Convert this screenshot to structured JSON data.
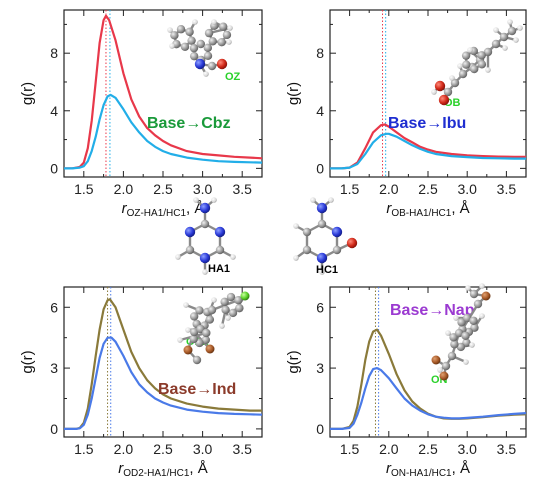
{
  "colors": {
    "cbz_title": "#1a9a3a",
    "ibu_title": "#1f2ed1",
    "ind_title": "#8b3a2a",
    "nap_title": "#9b3ad1",
    "label_green": "#2ad12a",
    "red_curve": "#e8384a",
    "cyan_curve": "#22aee8",
    "olive_curve": "#8a7a3a",
    "blue_curve": "#4a7ae8"
  },
  "molecules": {
    "left_label": "HA1",
    "right_label": "HC1"
  },
  "chart_data": [
    {
      "type": "line",
      "title": "Base→Cbz",
      "atom_label": "OZ",
      "ylabel": "g(r)",
      "xlabel_main": "r",
      "xlabel_sub": "OZ-HA1/HC1",
      "xlabel_unit": ", Å",
      "xlim": [
        1.25,
        3.75
      ],
      "ylim": [
        -0.6,
        11
      ],
      "xticks": [
        "1.5",
        "2.0",
        "2.5",
        "3.0",
        "3.5"
      ],
      "xtick_values": [
        1.5,
        2.0,
        2.5,
        3.0,
        3.5
      ],
      "yticks": [
        "0",
        "4",
        "8"
      ],
      "ytick_values": [
        0,
        4,
        8
      ],
      "vlines": [
        1.78,
        1.83
      ],
      "series": [
        {
          "color": "red_curve",
          "x": [
            1.25,
            1.35,
            1.45,
            1.5,
            1.55,
            1.6,
            1.65,
            1.7,
            1.75,
            1.78,
            1.82,
            1.9,
            2.0,
            2.1,
            2.2,
            2.3,
            2.4,
            2.5,
            2.6,
            2.8,
            3.0,
            3.2,
            3.4,
            3.6,
            3.75
          ],
          "y": [
            0,
            0,
            0.1,
            0.4,
            1.4,
            3.3,
            6.0,
            8.7,
            10.3,
            10.6,
            10.3,
            8.9,
            6.6,
            4.8,
            3.6,
            2.8,
            2.3,
            1.9,
            1.6,
            1.2,
            1.0,
            0.9,
            0.8,
            0.75,
            0.7
          ]
        },
        {
          "color": "cyan_curve",
          "x": [
            1.25,
            1.35,
            1.45,
            1.5,
            1.55,
            1.6,
            1.65,
            1.7,
            1.75,
            1.8,
            1.84,
            1.9,
            2.0,
            2.1,
            2.2,
            2.3,
            2.4,
            2.5,
            2.6,
            2.8,
            3.0,
            3.2,
            3.4,
            3.6,
            3.75
          ],
          "y": [
            0,
            0,
            0.05,
            0.15,
            0.5,
            1.2,
            2.2,
            3.4,
            4.4,
            5.0,
            5.1,
            4.9,
            4.1,
            3.2,
            2.5,
            1.9,
            1.5,
            1.2,
            1.0,
            0.75,
            0.6,
            0.5,
            0.45,
            0.42,
            0.4
          ]
        }
      ]
    },
    {
      "type": "line",
      "title": "Base→Ibu",
      "atom_label": "OB",
      "ylabel": "g(r)",
      "xlabel_main": "r",
      "xlabel_sub": "OB-HA1/HC1",
      "xlabel_unit": ", Å",
      "xlim": [
        1.25,
        3.75
      ],
      "ylim": [
        -0.6,
        11
      ],
      "xticks": [
        "1.5",
        "2.0",
        "2.5",
        "3.0",
        "3.5"
      ],
      "xtick_values": [
        1.5,
        2.0,
        2.5,
        3.0,
        3.5
      ],
      "yticks": [
        "0",
        "4",
        "8"
      ],
      "ytick_values": [
        0,
        4,
        8
      ],
      "vlines": [
        1.92,
        1.96
      ],
      "series": [
        {
          "color": "red_curve",
          "x": [
            1.25,
            1.4,
            1.5,
            1.6,
            1.7,
            1.8,
            1.9,
            1.95,
            2.0,
            2.1,
            2.2,
            2.3,
            2.4,
            2.5,
            2.6,
            2.8,
            3.0,
            3.2,
            3.4,
            3.6,
            3.75
          ],
          "y": [
            0,
            0,
            0.05,
            0.4,
            1.4,
            2.5,
            3.0,
            3.05,
            2.9,
            2.5,
            2.1,
            1.8,
            1.5,
            1.3,
            1.15,
            1.0,
            0.9,
            0.85,
            0.82,
            0.8,
            0.8
          ]
        },
        {
          "color": "cyan_curve",
          "x": [
            1.25,
            1.4,
            1.5,
            1.6,
            1.7,
            1.8,
            1.9,
            1.97,
            2.0,
            2.1,
            2.2,
            2.3,
            2.4,
            2.5,
            2.6,
            2.8,
            3.0,
            3.2,
            3.4,
            3.6,
            3.75
          ],
          "y": [
            0,
            0,
            0.05,
            0.3,
            1.0,
            1.8,
            2.3,
            2.4,
            2.4,
            2.2,
            1.9,
            1.6,
            1.35,
            1.15,
            1.0,
            0.85,
            0.78,
            0.72,
            0.7,
            0.68,
            0.68
          ]
        }
      ]
    },
    {
      "type": "line",
      "title": "Base→Ind",
      "atom_label": "OD2",
      "ylabel": "g(r)",
      "xlabel_main": "r",
      "xlabel_sub": "OD2-HA1/HC1",
      "xlabel_unit": ", Å",
      "xlim": [
        1.25,
        3.75
      ],
      "ylim": [
        -0.4,
        7
      ],
      "xticks": [
        "1.5",
        "2.0",
        "2.5",
        "3.0",
        "3.5"
      ],
      "xtick_values": [
        1.5,
        2.0,
        2.5,
        3.0,
        3.5
      ],
      "yticks": [
        "0",
        "3",
        "6"
      ],
      "ytick_values": [
        0,
        3,
        6
      ],
      "vlines": [
        1.8,
        1.84
      ],
      "series": [
        {
          "color": "olive_curve",
          "x": [
            1.25,
            1.4,
            1.45,
            1.5,
            1.55,
            1.6,
            1.65,
            1.7,
            1.75,
            1.8,
            1.83,
            1.9,
            2.0,
            2.1,
            2.2,
            2.3,
            2.4,
            2.5,
            2.6,
            2.8,
            3.0,
            3.2,
            3.4,
            3.6,
            3.75
          ],
          "y": [
            0,
            0,
            0.05,
            0.3,
            1.0,
            2.2,
            3.6,
            4.9,
            5.9,
            6.35,
            6.4,
            6.0,
            4.9,
            3.8,
            3.0,
            2.4,
            2.0,
            1.7,
            1.5,
            1.25,
            1.1,
            1.0,
            0.95,
            0.9,
            0.9
          ]
        },
        {
          "color": "blue_curve",
          "x": [
            1.25,
            1.4,
            1.45,
            1.5,
            1.55,
            1.6,
            1.65,
            1.7,
            1.75,
            1.8,
            1.85,
            1.9,
            2.0,
            2.1,
            2.2,
            2.3,
            2.4,
            2.5,
            2.6,
            2.8,
            3.0,
            3.2,
            3.4,
            3.6,
            3.75
          ],
          "y": [
            0,
            0,
            0.03,
            0.2,
            0.7,
            1.5,
            2.5,
            3.5,
            4.2,
            4.5,
            4.5,
            4.3,
            3.6,
            2.8,
            2.2,
            1.8,
            1.5,
            1.3,
            1.15,
            0.95,
            0.85,
            0.78,
            0.74,
            0.72,
            0.7
          ]
        }
      ]
    },
    {
      "type": "line",
      "title": "Base→Nap",
      "atom_label": "ON",
      "ylabel": "g(r)",
      "xlabel_main": "r",
      "xlabel_sub": "ON-HA1/HC1",
      "xlabel_unit": ", Å",
      "xlim": [
        1.25,
        3.75
      ],
      "ylim": [
        -0.4,
        7
      ],
      "xticks": [
        "1.5",
        "2.0",
        "2.5",
        "3.0",
        "3.5"
      ],
      "xtick_values": [
        1.5,
        2.0,
        2.5,
        3.0,
        3.5
      ],
      "yticks": [
        "0",
        "3",
        "6"
      ],
      "ytick_values": [
        0,
        3,
        6
      ],
      "vlines": [
        1.83,
        1.87
      ],
      "series": [
        {
          "color": "olive_curve",
          "x": [
            1.25,
            1.4,
            1.5,
            1.55,
            1.6,
            1.65,
            1.7,
            1.75,
            1.8,
            1.85,
            1.9,
            2.0,
            2.1,
            2.2,
            2.3,
            2.4,
            2.5,
            2.6,
            2.7,
            2.8,
            2.9,
            3.0,
            3.2,
            3.4,
            3.6,
            3.75
          ],
          "y": [
            0,
            0,
            0.1,
            0.4,
            1.1,
            2.2,
            3.4,
            4.3,
            4.8,
            4.9,
            4.6,
            3.7,
            2.7,
            1.9,
            1.35,
            1.0,
            0.75,
            0.6,
            0.52,
            0.5,
            0.5,
            0.52,
            0.58,
            0.65,
            0.7,
            0.72
          ]
        },
        {
          "color": "blue_curve",
          "x": [
            1.25,
            1.4,
            1.5,
            1.55,
            1.6,
            1.65,
            1.7,
            1.75,
            1.8,
            1.85,
            1.9,
            2.0,
            2.1,
            2.2,
            2.3,
            2.4,
            2.5,
            2.6,
            2.7,
            2.8,
            2.9,
            3.0,
            3.2,
            3.4,
            3.6,
            3.75
          ],
          "y": [
            0,
            0,
            0.05,
            0.25,
            0.7,
            1.3,
            2.0,
            2.6,
            2.95,
            3.0,
            2.9,
            2.5,
            2.0,
            1.5,
            1.15,
            0.9,
            0.72,
            0.6,
            0.55,
            0.52,
            0.52,
            0.54,
            0.6,
            0.68,
            0.74,
            0.78
          ]
        }
      ]
    }
  ]
}
